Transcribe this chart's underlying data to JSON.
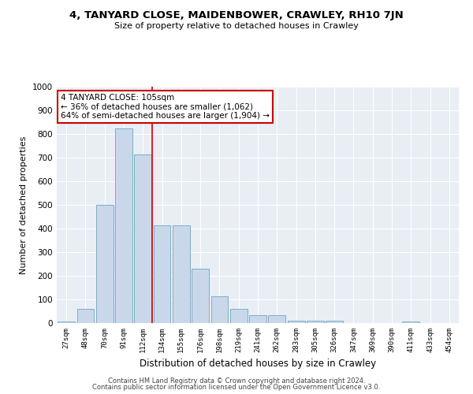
{
  "title": "4, TANYARD CLOSE, MAIDENBOWER, CRAWLEY, RH10 7JN",
  "subtitle": "Size of property relative to detached houses in Crawley",
  "xlabel": "Distribution of detached houses by size in Crawley",
  "ylabel": "Number of detached properties",
  "bar_labels": [
    "27sqm",
    "48sqm",
    "70sqm",
    "91sqm",
    "112sqm",
    "134sqm",
    "155sqm",
    "176sqm",
    "198sqm",
    "219sqm",
    "241sqm",
    "262sqm",
    "283sqm",
    "305sqm",
    "326sqm",
    "347sqm",
    "369sqm",
    "390sqm",
    "411sqm",
    "433sqm",
    "454sqm"
  ],
  "bar_values": [
    8,
    60,
    500,
    825,
    712,
    415,
    415,
    230,
    115,
    60,
    32,
    32,
    10,
    10,
    10,
    0,
    0,
    0,
    8,
    0,
    0
  ],
  "bar_color": "#c8d8ea",
  "bar_edge_color": "#7aaecb",
  "vline_x": 4.5,
  "vline_color": "#cc0000",
  "annotation_title": "4 TANYARD CLOSE: 105sqm",
  "annotation_line1": "← 36% of detached houses are smaller (1,062)",
  "annotation_line2": "64% of semi-detached houses are larger (1,904) →",
  "annotation_box_edge": "#cc0000",
  "ylim": [
    0,
    1000
  ],
  "yticks": [
    0,
    100,
    200,
    300,
    400,
    500,
    600,
    700,
    800,
    900,
    1000
  ],
  "bg_color": "#e8eef4",
  "grid_color": "#ffffff",
  "footer1": "Contains HM Land Registry data © Crown copyright and database right 2024.",
  "footer2": "Contains public sector information licensed under the Open Government Licence v3.0."
}
